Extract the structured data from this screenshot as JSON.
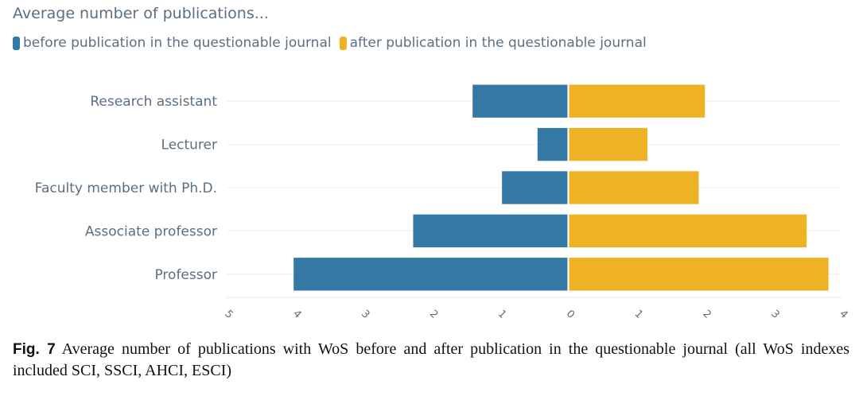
{
  "chart_data": {
    "type": "bar",
    "orientation": "horizontal-diverging",
    "title": "Average number of publications...",
    "categories": [
      "Research assistant",
      "Lecturer",
      "Faculty member with Ph.D.",
      "Associate professor",
      "Professor"
    ],
    "series": [
      {
        "name": "before publication in the questionable journal",
        "values": [
          1.4,
          0.45,
          0.97,
          2.27,
          4.02
        ],
        "color": "#3478a4",
        "direction": "left"
      },
      {
        "name": "after publication in the questionable journal",
        "values": [
          2.0,
          1.16,
          1.91,
          3.49,
          3.81
        ],
        "color": "#edb325",
        "direction": "right"
      }
    ],
    "xlim": [
      -5,
      4
    ],
    "xticks": [
      -5,
      -4,
      -3,
      -2,
      -1,
      0,
      1,
      2,
      3,
      4
    ],
    "xtick_labels": [
      "5",
      "4",
      "3",
      "2",
      "1",
      "0",
      "1",
      "2",
      "3",
      "4"
    ],
    "grid": true,
    "legend_position": "top-left"
  },
  "caption": {
    "label": "Fig. 7",
    "text": "Average number of publications with WoS before and after publication in the questionable journal (all WoS indexes included SCI, SSCI, AHCI, ESCI)"
  }
}
